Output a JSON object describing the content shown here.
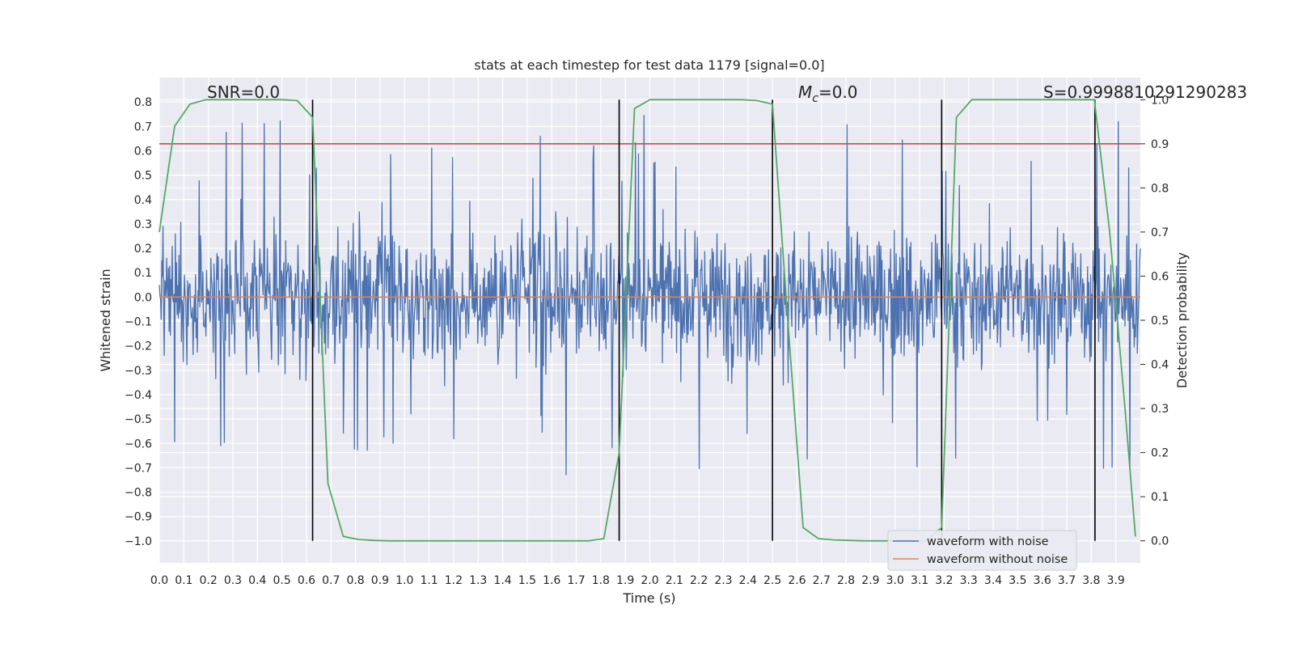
{
  "chart_data": {
    "type": "line",
    "title": "stats at each timestep for test data 1179 [signal=0.0]",
    "xlabel": "Time (s)",
    "ylabel": "Whitened strain",
    "y2label": "Detection probability",
    "xlim": [
      0.0,
      4.0
    ],
    "ylim": [
      -1.09,
      0.9
    ],
    "y2lim": [
      -0.05,
      1.05
    ],
    "xticks": [
      "0.0",
      "0.1",
      "0.2",
      "0.3",
      "0.4",
      "0.5",
      "0.6",
      "0.7",
      "0.8",
      "0.9",
      "1.0",
      "1.1",
      "1.2",
      "1.3",
      "1.4",
      "1.5",
      "1.6",
      "1.7",
      "1.8",
      "1.9",
      "2.0",
      "2.1",
      "2.2",
      "2.3",
      "2.4",
      "2.5",
      "2.6",
      "2.7",
      "2.8",
      "2.9",
      "3.0",
      "3.1",
      "3.2",
      "3.3",
      "3.4",
      "3.5",
      "3.6",
      "3.7",
      "3.8",
      "3.9"
    ],
    "yticks": [
      "0.8",
      "0.7",
      "0.6",
      "0.5",
      "0.4",
      "0.3",
      "0.2",
      "0.1",
      "0.0",
      "−0.1",
      "−0.2",
      "−0.3",
      "−0.4",
      "−0.5",
      "−0.6",
      "−0.7",
      "−0.8",
      "−0.9",
      "−1.0"
    ],
    "y2ticks": [
      "1.0",
      "0.9",
      "0.8",
      "0.7",
      "0.6",
      "0.5",
      "0.4",
      "0.3",
      "0.2",
      "0.1",
      "0.0"
    ],
    "annotations": {
      "snr": "SNR=0.0",
      "mc": "M",
      "mc_sub": "c",
      "mc_value": "=0.0",
      "s": "S=0.9998810291290283"
    },
    "legend": {
      "location": "lower-right",
      "entries": [
        {
          "label": "waveform with noise",
          "color": "#4c72b0"
        },
        {
          "label": "waveform without noise",
          "color": "#dd8452"
        }
      ]
    },
    "threshold": {
      "y2": 0.9,
      "color": "#c44e52"
    },
    "vlines": [
      0.625,
      1.875,
      2.5,
      3.19,
      3.815
    ],
    "series": [
      {
        "name": "waveform with noise",
        "color": "#4c72b0",
        "kind": "noise",
        "typical_abs": 0.25,
        "max": 0.8,
        "min": -1.0,
        "seed": 1179
      },
      {
        "name": "waveform without noise",
        "color": "#dd8452",
        "x": [
          0.0,
          4.0
        ],
        "y": [
          0.0,
          0.0
        ]
      },
      {
        "name": "detection probability",
        "color": "#55a868",
        "axis": "right",
        "x": [
          0.0,
          0.0625,
          0.125,
          0.19,
          0.25,
          0.3125,
          0.375,
          0.4375,
          0.5,
          0.5625,
          0.625,
          0.6875,
          0.75,
          0.8125,
          0.875,
          0.9375,
          1.0,
          1.5,
          1.75,
          1.8125,
          1.875,
          1.9375,
          2.0,
          2.25,
          2.375,
          2.4375,
          2.5,
          2.5625,
          2.625,
          2.6875,
          2.75,
          2.8125,
          2.875,
          3.0,
          3.125,
          3.19,
          3.25,
          3.3125,
          3.375,
          3.5,
          3.75,
          3.8125,
          3.875,
          3.9375,
          3.98
        ],
        "y": [
          0.7,
          0.94,
          0.99,
          1.0,
          1.0,
          1.0,
          1.0,
          1.0,
          1.0,
          0.998,
          0.96,
          0.13,
          0.01,
          0.003,
          0.001,
          0.0,
          0.0,
          0.0,
          0.0,
          0.005,
          0.2,
          0.98,
          1.0,
          1.0,
          1.0,
          0.998,
          0.99,
          0.5,
          0.03,
          0.005,
          0.002,
          0.001,
          0.0,
          0.0,
          0.0,
          0.03,
          0.96,
          1.0,
          1.0,
          1.0,
          1.0,
          1.0,
          0.7,
          0.3,
          0.01
        ]
      }
    ]
  }
}
